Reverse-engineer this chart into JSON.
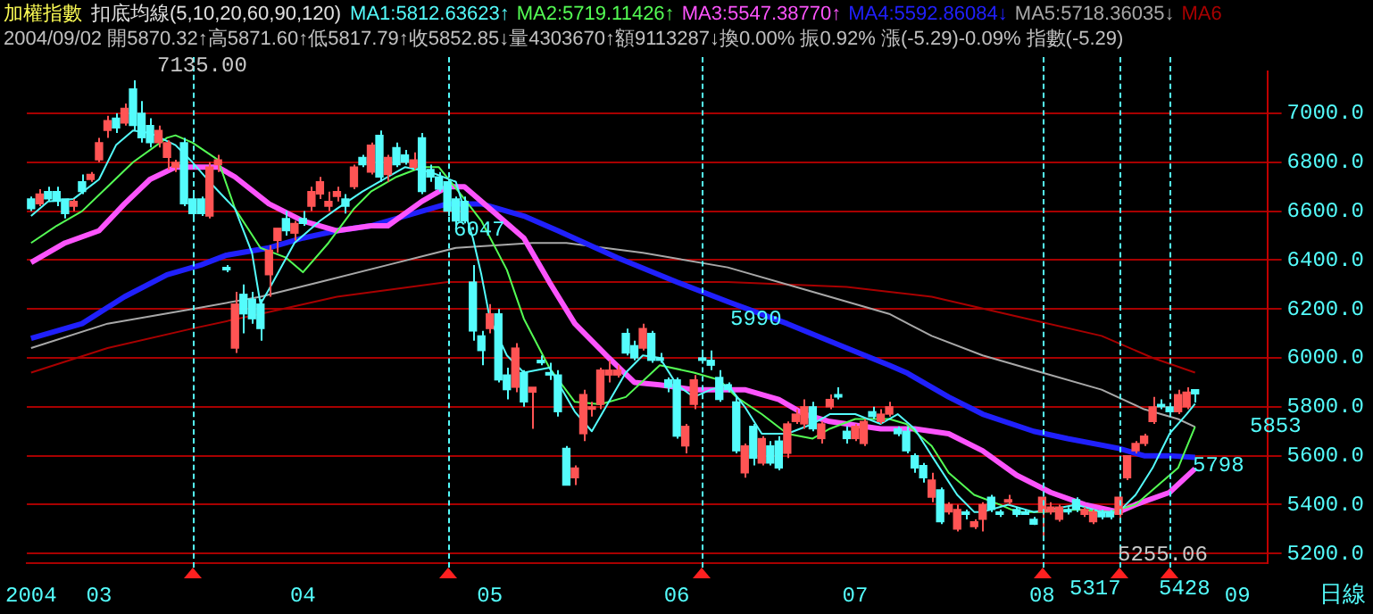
{
  "chart_data": {
    "type": "candlestick",
    "title": "加權指數",
    "subtitle": "扣底均線(5,10,20,60,90,120)",
    "annotations": [
      "2004/09/02 開5870.32↑高5871.60↑低5817.79↑收5852.85↓量4303670↑額9113287↓換0.00% 振0.92% 漲(-5.29)-0.09% 指數(-5.29)",
      "日線",
      "7135.00",
      "6047",
      "5990",
      "5255.06",
      "5317",
      "5428",
      "5798",
      "5853"
    ],
    "categories": [
      "2004",
      null,
      null,
      null,
      null,
      null,
      null,
      null,
      "03",
      null,
      null,
      null,
      null,
      null,
      null,
      null,
      null,
      null,
      null,
      null,
      null,
      null,
      null,
      null,
      null,
      null,
      null,
      null,
      null,
      null,
      null,
      null,
      "04",
      null,
      null,
      null,
      null,
      null,
      null,
      null,
      null,
      null,
      null,
      null,
      null,
      null,
      null,
      null,
      null,
      null,
      null,
      null,
      null,
      null,
      "05",
      null,
      null,
      null,
      null,
      null,
      null,
      null,
      null,
      null,
      null,
      null,
      null,
      null,
      null,
      null,
      null,
      null,
      null,
      null,
      null,
      null,
      "06",
      null,
      null,
      null,
      null,
      null,
      null,
      null,
      null,
      null,
      null,
      null,
      null,
      null,
      null,
      null,
      null,
      null,
      null,
      null,
      null,
      "07",
      null,
      null,
      null,
      null,
      null,
      null,
      null,
      null,
      null,
      null,
      null,
      null,
      null,
      null,
      null,
      null,
      null,
      null,
      null,
      null,
      null,
      "08",
      null,
      null,
      null,
      null,
      null,
      null,
      null,
      null,
      null,
      null,
      null,
      null,
      null,
      null,
      null,
      null,
      null,
      null,
      null,
      null,
      null,
      null,
      "09",
      null,
      null,
      null
    ],
    "ohlc": [
      [
        6650,
        6660,
        6600,
        6610
      ],
      [
        6630,
        6690,
        6620,
        6670
      ],
      [
        6680,
        6700,
        6640,
        6650
      ],
      [
        6680,
        6700,
        6620,
        6640
      ],
      [
        6650,
        6650,
        6570,
        6590
      ],
      [
        6620,
        6650,
        6600,
        6640
      ],
      [
        6720,
        6750,
        6670,
        6680
      ],
      [
        6730,
        6760,
        6720,
        6750
      ],
      [
        6810,
        6900,
        6800,
        6880
      ],
      [
        6930,
        6990,
        6900,
        6970
      ],
      [
        6980,
        7000,
        6920,
        6940
      ],
      [
        6960,
        7040,
        6950,
        7020
      ],
      [
        7100,
        7135,
        6930,
        6950
      ],
      [
        7000,
        7050,
        6880,
        6900
      ],
      [
        6950,
        6980,
        6860,
        6880
      ],
      [
        6880,
        6950,
        6860,
        6930
      ],
      [
        6820,
        6890,
        6770,
        6880
      ],
      [
        6780,
        6810,
        6760,
        6800
      ],
      [
        6880,
        6900,
        6620,
        6630
      ],
      [
        6650,
        6680,
        6560,
        6590
      ],
      [
        6650,
        6660,
        6580,
        6590
      ],
      [
        6580,
        6800,
        6570,
        6780
      ],
      [
        6790,
        6830,
        6760,
        6810
      ],
      [
        6370,
        6380,
        6350,
        6360
      ],
      [
        6040,
        6270,
        6020,
        6220
      ],
      [
        6260,
        6300,
        6100,
        6180
      ],
      [
        6240,
        6270,
        6140,
        6160
      ],
      [
        6220,
        6240,
        6070,
        6120
      ],
      [
        6340,
        6460,
        6250,
        6440
      ],
      [
        6480,
        6530,
        6430,
        6530
      ],
      [
        6570,
        6600,
        6500,
        6520
      ],
      [
        6510,
        6560,
        6480,
        6550
      ],
      [
        6570,
        6600,
        6540,
        6550
      ],
      [
        6620,
        6700,
        6600,
        6680
      ],
      [
        6670,
        6740,
        6650,
        6720
      ],
      [
        6620,
        6680,
        6600,
        6640
      ],
      [
        6660,
        6700,
        6640,
        6680
      ],
      [
        6650,
        6670,
        6590,
        6620
      ],
      [
        6700,
        6790,
        6690,
        6780
      ],
      [
        6820,
        6830,
        6780,
        6790
      ],
      [
        6760,
        6880,
        6750,
        6870
      ],
      [
        6910,
        6930,
        6720,
        6740
      ],
      [
        6750,
        6830,
        6720,
        6820
      ],
      [
        6860,
        6880,
        6780,
        6790
      ],
      [
        6830,
        6850,
        6790,
        6800
      ],
      [
        6780,
        6840,
        6770,
        6810
      ],
      [
        6900,
        6920,
        6670,
        6680
      ],
      [
        6770,
        6790,
        6720,
        6740
      ],
      [
        6740,
        6760,
        6680,
        6690
      ],
      [
        6720,
        6730,
        6580,
        6600
      ],
      [
        6650,
        6660,
        6540,
        6560
      ],
      [
        6640,
        6660,
        6550,
        6560
      ],
      [
        6310,
        6380,
        6070,
        6110
      ],
      [
        6090,
        6110,
        5970,
        6030
      ],
      [
        6120,
        6220,
        6100,
        6180
      ],
      [
        6180,
        6200,
        5900,
        5910
      ],
      [
        5930,
        5960,
        5830,
        5870
      ],
      [
        5880,
        6060,
        5860,
        6040
      ],
      [
        5940,
        5950,
        5800,
        5820
      ],
      [
        5860,
        5880,
        5710,
        5880
      ],
      [
        5990,
        6010,
        5970,
        5980
      ],
      [
        5940,
        5980,
        5910,
        5930
      ],
      [
        5930,
        5950,
        5760,
        5780
      ],
      [
        5630,
        5640,
        5480,
        5480
      ],
      [
        5510,
        5560,
        5480,
        5550
      ],
      [
        5690,
        5870,
        5660,
        5850
      ],
      [
        5790,
        5820,
        5760,
        5800
      ],
      [
        5810,
        5960,
        5790,
        5950
      ],
      [
        5930,
        5990,
        5900,
        5950
      ],
      [
        5930,
        5970,
        5920,
        5950
      ],
      [
        6100,
        6120,
        6010,
        6020
      ],
      [
        6050,
        6070,
        5990,
        6000
      ],
      [
        6040,
        6140,
        6030,
        6120
      ],
      [
        6100,
        6110,
        5980,
        5990
      ],
      [
        6000,
        6020,
        5980,
        5990
      ],
      [
        5910,
        5920,
        5860,
        5880
      ],
      [
        5910,
        5920,
        5670,
        5680
      ],
      [
        5640,
        5730,
        5610,
        5720
      ],
      [
        5810,
        5930,
        5790,
        5910
      ],
      [
        6000,
        6030,
        5980,
        5990
      ],
      [
        5990,
        6030,
        5950,
        5970
      ],
      [
        5920,
        5950,
        5820,
        5830
      ],
      [
        5890,
        5900,
        5860,
        5870
      ],
      [
        5820,
        5840,
        5610,
        5620
      ],
      [
        5530,
        5650,
        5510,
        5640
      ],
      [
        5720,
        5730,
        5560,
        5590
      ],
      [
        5570,
        5680,
        5560,
        5670
      ],
      [
        5640,
        5660,
        5560,
        5570
      ],
      [
        5660,
        5680,
        5540,
        5550
      ],
      [
        5610,
        5740,
        5590,
        5730
      ],
      [
        5740,
        5790,
        5730,
        5770
      ],
      [
        5730,
        5830,
        5710,
        5800
      ],
      [
        5800,
        5820,
        5700,
        5710
      ],
      [
        5670,
        5740,
        5650,
        5730
      ],
      [
        5800,
        5850,
        5790,
        5830
      ],
      [
        5850,
        5880,
        5830,
        5840
      ],
      [
        5700,
        5720,
        5650,
        5670
      ],
      [
        5670,
        5730,
        5660,
        5720
      ],
      [
        5650,
        5750,
        5640,
        5740
      ],
      [
        5780,
        5800,
        5750,
        5760
      ],
      [
        5740,
        5790,
        5730,
        5770
      ],
      [
        5770,
        5820,
        5760,
        5800
      ],
      [
        5710,
        5720,
        5680,
        5690
      ],
      [
        5700,
        5720,
        5610,
        5620
      ],
      [
        5600,
        5610,
        5530,
        5550
      ],
      [
        5560,
        5570,
        5490,
        5510
      ],
      [
        5430,
        5530,
        5410,
        5500
      ],
      [
        5460,
        5470,
        5320,
        5330
      ],
      [
        5370,
        5410,
        5360,
        5400
      ],
      [
        5300,
        5400,
        5290,
        5380
      ],
      [
        5370,
        5380,
        5340,
        5360
      ],
      [
        5310,
        5340,
        5300,
        5330
      ],
      [
        5340,
        5410,
        5290,
        5400
      ],
      [
        5430,
        5440,
        5370,
        5380
      ],
      [
        5370,
        5380,
        5350,
        5360
      ],
      [
        5410,
        5440,
        5400,
        5420
      ],
      [
        5380,
        5390,
        5350,
        5360
      ],
      [
        5370,
        5380,
        5360,
        5360
      ],
      [
        5340,
        5350,
        5317,
        5320
      ],
      [
        5370,
        5430,
        5255.06,
        5430
      ],
      [
        5370,
        5410,
        5360,
        5390
      ],
      [
        5340,
        5400,
        5330,
        5390
      ],
      [
        5380,
        5390,
        5360,
        5370
      ],
      [
        5420,
        5430,
        5370,
        5380
      ],
      [
        5360,
        5390,
        5350,
        5380
      ],
      [
        5330,
        5380,
        5320,
        5370
      ],
      [
        5370,
        5380,
        5340,
        5350
      ],
      [
        5370,
        5380,
        5340,
        5350
      ],
      [
        5360,
        5440,
        5340,
        5430
      ],
      [
        5510,
        5600,
        5500,
        5600
      ],
      [
        5620,
        5660,
        5610,
        5650
      ],
      [
        5650,
        5690,
        5640,
        5680
      ],
      [
        5740,
        5840,
        5730,
        5800
      ],
      [
        5810,
        5830,
        5790,
        5800
      ],
      [
        5800,
        5810,
        5760,
        5780
      ],
      [
        5780,
        5870,
        5770,
        5850
      ],
      [
        5800,
        5880,
        5790,
        5860
      ],
      [
        5870.32,
        5871.6,
        5817.79,
        5852.85
      ],
      null,
      null,
      null,
      null,
      null,
      null,
      null,
      null
    ],
    "colors": [
      "#54fcfc",
      "#ff5454",
      "#54fcfc",
      "#54fcfc",
      "#54fcfc",
      "#ff5454",
      "#54fcfc",
      "#ff5454",
      "#ff5454",
      "#ff5454",
      "#54fcfc",
      "#ff5454",
      "#54fcfc",
      "#54fcfc",
      "#54fcfc",
      "#ff5454",
      "#ff5454",
      "#ff5454",
      "#54fcfc",
      "#54fcfc",
      "#54fcfc",
      "#ff5454",
      "#ff5454",
      "#54fcfc",
      "#ff5454",
      "#54fcfc",
      "#54fcfc",
      "#54fcfc",
      "#ff5454",
      "#ff5454",
      "#54fcfc",
      "#ff5454",
      "#54fcfc",
      "#ff5454",
      "#ff5454",
      "#ff5454",
      "#ff5454",
      "#54fcfc",
      "#ff5454",
      "#54fcfc",
      "#ff5454",
      "#54fcfc",
      "#ff5454",
      "#54fcfc",
      "#54fcfc",
      "#ff5454",
      "#54fcfc",
      "#54fcfc",
      "#54fcfc",
      "#54fcfc",
      "#54fcfc",
      "#54fcfc",
      "#54fcfc",
      "#54fcfc",
      "#ff5454",
      "#54fcfc",
      "#54fcfc",
      "#ff5454",
      "#54fcfc",
      "#ff5454",
      "#54fcfc",
      "#54fcfc",
      "#54fcfc",
      "#54fcfc",
      "#ff5454",
      "#ff5454",
      "#ff5454",
      "#ff5454",
      "#ff5454",
      "#ff5454",
      "#54fcfc",
      "#54fcfc",
      "#ff5454",
      "#54fcfc",
      "#54fcfc",
      "#54fcfc",
      "#54fcfc",
      "#ff5454",
      "#ff5454",
      "#54fcfc",
      "#54fcfc",
      "#54fcfc",
      "#54fcfc",
      "#54fcfc",
      "#ff5454",
      "#54fcfc",
      "#ff5454",
      "#54fcfc",
      "#54fcfc",
      "#ff5454",
      "#ff5454",
      "#ff5454",
      "#54fcfc",
      "#ff5454",
      "#ff5454",
      "#54fcfc",
      "#54fcfc",
      "#ff5454",
      "#ff5454",
      "#54fcfc",
      "#ff5454",
      "#ff5454",
      "#54fcfc",
      "#54fcfc",
      "#54fcfc",
      "#54fcfc",
      "#ff5454",
      "#54fcfc",
      "#ff5454",
      "#ff5454",
      "#54fcfc",
      "#ff5454",
      "#ff5454",
      "#54fcfc",
      "#54fcfc",
      "#ff5454",
      "#54fcfc",
      "#54fcfc",
      "#54fcfc",
      "#ff5454",
      "#ff5454",
      "#ff5454",
      "#54fcfc",
      "#54fcfc",
      "#ff5454",
      "#ff5454",
      "#54fcfc",
      "#54fcfc",
      "#ff5454",
      "#ff5454",
      "#ff5454",
      "#ff5454",
      "#ff5454",
      "#54fcfc",
      "#54fcfc",
      "#ff5454",
      "#ff5454",
      "#54fcfc",
      null,
      null,
      null,
      null,
      null,
      null,
      null,
      null
    ],
    "series": [
      {
        "name": "MA1:5812.63623↑",
        "color": "#54fcfc",
        "type": "line",
        "values": [
          6580,
          null,
          6640,
          null,
          null,
          6650,
          null,
          null,
          6730,
          null,
          6870,
          null,
          6930,
          null,
          6920,
          null,
          null,
          6870,
          null,
          6800,
          null,
          6720,
          null,
          null,
          6610,
          null,
          6430,
          6220,
          6280,
          null,
          null,
          6470,
          null,
          null,
          6560,
          null,
          6610,
          null,
          null,
          6680,
          null,
          null,
          6740,
          null,
          6780,
          null,
          null,
          6760,
          null,
          null,
          6720,
          null,
          6490,
          6340,
          6160,
          null,
          6010,
          null,
          5940,
          null,
          null,
          5960,
          null,
          null,
          5780,
          null,
          5700,
          null,
          5820,
          null,
          5940,
          null,
          6010,
          null,
          6000,
          null,
          5890,
          null,
          5840,
          null,
          5870,
          null,
          5890,
          null,
          5800,
          null,
          5690,
          null,
          null,
          5690,
          null,
          null,
          5730,
          null,
          5770,
          null,
          null,
          5770,
          null,
          null,
          5730,
          null,
          5770,
          null,
          5710,
          null,
          5600,
          null,
          null,
          5440,
          null,
          5370,
          5370,
          null,
          null,
          5400,
          null,
          null,
          5370,
          null,
          5380,
          null,
          null,
          5400,
          null,
          null,
          5370,
          null,
          5370,
          null,
          5440,
          null,
          5550,
          null,
          5690,
          null,
          5770,
          5813,
          null,
          null,
          null,
          null,
          null,
          null,
          null,
          null
        ]
      },
      {
        "name": "MA2:5719.11426↑",
        "color": "#54fc54",
        "type": "line",
        "values": [
          6470,
          null,
          null,
          6540,
          null,
          null,
          6600,
          null,
          null,
          6700,
          null,
          null,
          6800,
          null,
          null,
          null,
          6900,
          6910,
          null,
          6880,
          null,
          null,
          6810,
          null,
          6610,
          null,
          null,
          6450,
          null,
          null,
          6410,
          null,
          6350,
          null,
          null,
          6470,
          null,
          null,
          6610,
          null,
          6680,
          null,
          null,
          6740,
          null,
          null,
          6780,
          null,
          6780,
          null,
          null,
          6650,
          null,
          6560,
          null,
          null,
          6360,
          null,
          6160,
          null,
          null,
          5960,
          null,
          null,
          5820,
          null,
          null,
          5810,
          null,
          null,
          5840,
          null,
          null,
          null,
          5970,
          null,
          null,
          null,
          5940,
          null,
          null,
          5910,
          null,
          5840,
          null,
          null,
          5770,
          null,
          null,
          5690,
          null,
          null,
          5670,
          null,
          5710,
          null,
          null,
          5750,
          null,
          null,
          null,
          5750,
          null,
          5730,
          null,
          null,
          5640,
          null,
          5530,
          null,
          null,
          5440,
          null,
          null,
          5400,
          null,
          5370,
          null,
          null,
          5370,
          null,
          null,
          null,
          5380,
          null,
          null,
          null,
          5370,
          null,
          null,
          5400,
          null,
          5460,
          null,
          null,
          5550,
          null,
          5719,
          null,
          null,
          null,
          null,
          null,
          null,
          null,
          null
        ]
      },
      {
        "name": "MA3:5547.38770↑",
        "color": "#fc54fc",
        "type": "line",
        "values": [
          6390,
          null,
          null,
          null,
          6470,
          null,
          null,
          null,
          6520,
          null,
          null,
          6630,
          null,
          null,
          6730,
          null,
          null,
          6780,
          null,
          null,
          null,
          null,
          6780,
          null,
          6740,
          null,
          null,
          null,
          6630,
          null,
          null,
          null,
          6560,
          null,
          null,
          null,
          6520,
          null,
          null,
          null,
          6540,
          null,
          6540,
          null,
          null,
          null,
          6640,
          null,
          null,
          6700,
          null,
          6700,
          null,
          null,
          6610,
          null,
          null,
          null,
          6490,
          null,
          null,
          6310,
          null,
          null,
          6140,
          null,
          null,
          null,
          6000,
          null,
          null,
          5900,
          null,
          null,
          5890,
          null,
          null,
          null,
          5870,
          null,
          null,
          5870,
          null,
          null,
          5870,
          null,
          null,
          null,
          5830,
          null,
          null,
          5770,
          null,
          null,
          5740,
          null,
          null,
          null,
          5720,
          null,
          5710,
          null,
          null,
          null,
          5710,
          null,
          null,
          null,
          5690,
          null,
          null,
          null,
          5620,
          null,
          null,
          null,
          5520,
          null,
          null,
          null,
          5450,
          null,
          null,
          null,
          5400,
          null,
          null,
          null,
          5370,
          null,
          5400,
          null,
          null,
          null,
          5450,
          null,
          null,
          5547,
          null,
          null,
          null,
          null,
          null,
          null,
          null,
          null
        ]
      },
      {
        "name": "MA4:5592.86084↓",
        "color": "#2020fc",
        "type": "line",
        "values": [
          6080,
          null,
          null,
          null,
          null,
          null,
          6140,
          null,
          null,
          null,
          null,
          6250,
          null,
          null,
          null,
          null,
          6340,
          null,
          null,
          null,
          6380,
          null,
          null,
          6420,
          null,
          null,
          null,
          null,
          6450,
          null,
          null,
          null,
          6490,
          null,
          null,
          null,
          6520,
          null,
          null,
          null,
          6540,
          null,
          null,
          null,
          6580,
          null,
          null,
          null,
          null,
          6630,
          null,
          null,
          null,
          6630,
          null,
          null,
          null,
          null,
          6580,
          null,
          null,
          null,
          6520,
          null,
          null,
          null,
          null,
          null,
          null,
          6410,
          null,
          null,
          null,
          null,
          null,
          null,
          6310,
          null,
          null,
          null,
          null,
          null,
          6230,
          null,
          null,
          null,
          null,
          null,
          null,
          6140,
          null,
          null,
          null,
          null,
          null,
          null,
          6040,
          null,
          null,
          null,
          null,
          5970,
          null,
          5940,
          null,
          null,
          null,
          null,
          5840,
          null,
          null,
          null,
          5770,
          null,
          null,
          null,
          null,
          null,
          5700,
          null,
          null,
          null,
          5670,
          null,
          null,
          null,
          null,
          null,
          5630,
          null,
          null,
          5600,
          null,
          null,
          5600,
          null,
          null,
          5593,
          null,
          null,
          null,
          null,
          null,
          null,
          null,
          null
        ]
      },
      {
        "name": "MA5:5718.36035↓",
        "color": "#a8a8a8",
        "type": "line",
        "values": [
          6040,
          null,
          null,
          null,
          null,
          null,
          null,
          null,
          null,
          6140,
          null,
          null,
          null,
          null,
          null,
          null,
          null,
          null,
          null,
          6200,
          null,
          null,
          null,
          null,
          null,
          null,
          null,
          6250,
          null,
          null,
          null,
          null,
          null,
          null,
          6310,
          null,
          null,
          null,
          null,
          null,
          null,
          null,
          6380,
          null,
          null,
          null,
          null,
          null,
          null,
          null,
          6450,
          null,
          null,
          null,
          null,
          null,
          null,
          null,
          null,
          6470,
          null,
          null,
          null,
          6470,
          null,
          null,
          null,
          null,
          null,
          null,
          null,
          null,
          6430,
          null,
          null,
          null,
          null,
          null,
          null,
          null,
          null,
          null,
          6370,
          null,
          null,
          null,
          null,
          null,
          null,
          null,
          null,
          null,
          6270,
          null,
          null,
          null,
          null,
          null,
          null,
          null,
          null,
          6180,
          null,
          null,
          null,
          null,
          6090,
          null,
          null,
          null,
          null,
          null,
          6010,
          null,
          null,
          null,
          null,
          null,
          null,
          5940,
          null,
          null,
          null,
          null,
          null,
          null,
          5870,
          null,
          null,
          null,
          null,
          5790,
          null,
          null,
          null,
          5750,
          null,
          5718,
          null,
          null,
          null,
          null,
          null,
          null,
          null,
          null
        ]
      },
      {
        "name": "MA6",
        "color": "#a80000",
        "type": "line",
        "values": [
          5940,
          null,
          null,
          null,
          null,
          null,
          null,
          null,
          null,
          6040,
          null,
          null,
          null,
          null,
          null,
          null,
          null,
          null,
          null,
          6120,
          null,
          null,
          null,
          null,
          null,
          null,
          null,
          6180,
          null,
          null,
          null,
          null,
          null,
          null,
          null,
          null,
          6250,
          null,
          null,
          null,
          null,
          null,
          null,
          null,
          null,
          null,
          null,
          null,
          null,
          6310,
          null,
          null,
          null,
          null,
          null,
          null,
          6310,
          null,
          null,
          null,
          null,
          null,
          null,
          null,
          null,
          null,
          null,
          null,
          null,
          6310,
          null,
          null,
          null,
          null,
          null,
          null,
          null,
          null,
          null,
          null,
          null,
          null,
          6310,
          null,
          null,
          null,
          null,
          null,
          null,
          null,
          null,
          null,
          null,
          null,
          null,
          null,
          6290,
          null,
          null,
          null,
          null,
          6270,
          null,
          null,
          null,
          null,
          6250,
          null,
          null,
          null,
          null,
          null,
          null,
          null,
          null,
          null,
          6170,
          null,
          null,
          null,
          null,
          null,
          null,
          null,
          null,
          null,
          6090,
          null,
          null,
          null,
          null,
          null,
          6000,
          null,
          null,
          null,
          null,
          5940,
          null,
          null,
          null,
          null,
          null,
          null,
          null,
          null
        ]
      }
    ],
    "ylim": [
      5160,
      7170
    ],
    "yticks": [
      {
        "value": 5200,
        "label": "5200.0"
      },
      {
        "value": 5400,
        "label": "5400.0"
      },
      {
        "value": 5600,
        "label": "5600.0"
      },
      {
        "value": 5800,
        "label": "5800.0"
      },
      {
        "value": 6000,
        "label": "6000.0"
      },
      {
        "value": 6200,
        "label": "6200.0"
      },
      {
        "value": 6400,
        "label": "6400.0"
      },
      {
        "value": 6600,
        "label": "6600.0"
      },
      {
        "value": 6800,
        "label": "6800.0"
      },
      {
        "value": 7000,
        "label": "7000.0"
      }
    ],
    "grid": "y",
    "legend": "top",
    "marker": "none"
  }
}
